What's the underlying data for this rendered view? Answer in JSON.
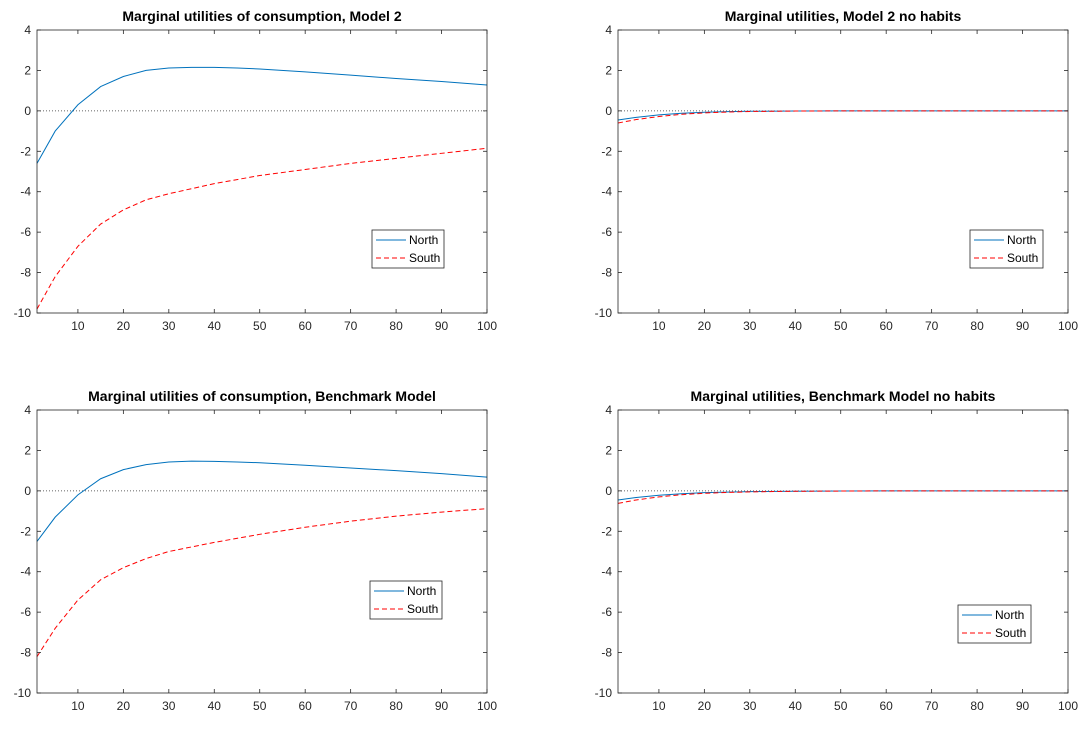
{
  "chart_data": [
    {
      "type": "line",
      "title": "Marginal utilities of consumption, Model 2",
      "xlabel": "",
      "ylabel": "",
      "xlim": [
        1,
        100
      ],
      "ylim": [
        -10,
        4
      ],
      "xticks": [
        10,
        20,
        30,
        40,
        50,
        60,
        70,
        80,
        90,
        100
      ],
      "yticks": [
        -10,
        -8,
        -6,
        -4,
        -2,
        0,
        2,
        4
      ],
      "reference_line": 0,
      "legend_position": "lower-right",
      "series": [
        {
          "name": "North",
          "color": "#0072BD",
          "style": "solid",
          "x": [
            1,
            5,
            10,
            15,
            20,
            25,
            30,
            35,
            40,
            45,
            50,
            60,
            70,
            80,
            90,
            100
          ],
          "y": [
            -2.6,
            -1.0,
            0.3,
            1.2,
            1.7,
            2.0,
            2.12,
            2.15,
            2.15,
            2.12,
            2.07,
            1.93,
            1.77,
            1.6,
            1.45,
            1.28
          ]
        },
        {
          "name": "South",
          "color": "#FF0000",
          "style": "dashed",
          "x": [
            1,
            5,
            10,
            15,
            20,
            25,
            30,
            40,
            50,
            60,
            70,
            80,
            90,
            100
          ],
          "y": [
            -9.8,
            -8.2,
            -6.7,
            -5.6,
            -4.9,
            -4.4,
            -4.1,
            -3.6,
            -3.2,
            -2.9,
            -2.6,
            -2.35,
            -2.1,
            -1.85
          ]
        }
      ]
    },
    {
      "type": "line",
      "title": "Marginal utilities, Model 2 no habits",
      "xlabel": "",
      "ylabel": "",
      "xlim": [
        1,
        100
      ],
      "ylim": [
        -10,
        4
      ],
      "xticks": [
        10,
        20,
        30,
        40,
        50,
        60,
        70,
        80,
        90,
        100
      ],
      "yticks": [
        -10,
        -8,
        -6,
        -4,
        -2,
        0,
        2,
        4
      ],
      "reference_line": 0,
      "legend_position": "lower-right",
      "series": [
        {
          "name": "North",
          "color": "#0072BD",
          "style": "solid",
          "x": [
            1,
            5,
            10,
            15,
            20,
            25,
            30,
            40,
            50,
            60,
            80,
            100
          ],
          "y": [
            -0.45,
            -0.32,
            -0.2,
            -0.12,
            -0.07,
            -0.04,
            -0.02,
            -0.01,
            0,
            0,
            0,
            0
          ]
        },
        {
          "name": "South",
          "color": "#FF0000",
          "style": "dashed",
          "x": [
            1,
            5,
            10,
            15,
            20,
            25,
            30,
            40,
            50,
            60,
            80,
            100
          ],
          "y": [
            -0.6,
            -0.43,
            -0.28,
            -0.17,
            -0.1,
            -0.06,
            -0.03,
            -0.01,
            0,
            0,
            0,
            0
          ]
        }
      ]
    },
    {
      "type": "line",
      "title": "Marginal utilities of consumption, Benchmark Model",
      "xlabel": "",
      "ylabel": "",
      "xlim": [
        1,
        100
      ],
      "ylim": [
        -10,
        4
      ],
      "xticks": [
        10,
        20,
        30,
        40,
        50,
        60,
        70,
        80,
        90,
        100
      ],
      "yticks": [
        -10,
        -8,
        -6,
        -4,
        -2,
        0,
        2,
        4
      ],
      "reference_line": 0,
      "legend_position": "lower-right",
      "series": [
        {
          "name": "North",
          "color": "#0072BD",
          "style": "solid",
          "x": [
            1,
            5,
            10,
            15,
            20,
            25,
            30,
            35,
            40,
            45,
            50,
            60,
            70,
            80,
            90,
            100
          ],
          "y": [
            -2.5,
            -1.3,
            -0.2,
            0.6,
            1.05,
            1.3,
            1.43,
            1.47,
            1.46,
            1.43,
            1.39,
            1.27,
            1.13,
            1.0,
            0.85,
            0.68
          ]
        },
        {
          "name": "South",
          "color": "#FF0000",
          "style": "dashed",
          "x": [
            1,
            5,
            10,
            15,
            20,
            25,
            30,
            40,
            50,
            60,
            70,
            80,
            90,
            100
          ],
          "y": [
            -8.2,
            -6.8,
            -5.4,
            -4.4,
            -3.8,
            -3.35,
            -3.0,
            -2.55,
            -2.15,
            -1.8,
            -1.5,
            -1.25,
            -1.05,
            -0.88
          ]
        }
      ]
    },
    {
      "type": "line",
      "title": "Marginal utilities, Benchmark Model no habits",
      "xlabel": "",
      "ylabel": "",
      "xlim": [
        1,
        100
      ],
      "ylim": [
        -10,
        4
      ],
      "xticks": [
        10,
        20,
        30,
        40,
        50,
        60,
        70,
        80,
        90,
        100
      ],
      "yticks": [
        -10,
        -8,
        -6,
        -4,
        -2,
        0,
        2,
        4
      ],
      "reference_line": 0,
      "legend_position": "lower-right",
      "series": [
        {
          "name": "North",
          "color": "#0072BD",
          "style": "solid",
          "x": [
            1,
            5,
            10,
            15,
            20,
            25,
            30,
            40,
            50,
            60,
            80,
            100
          ],
          "y": [
            -0.45,
            -0.33,
            -0.22,
            -0.14,
            -0.09,
            -0.06,
            -0.04,
            -0.02,
            -0.01,
            0,
            0,
            0
          ]
        },
        {
          "name": "South",
          "color": "#FF0000",
          "style": "dashed",
          "x": [
            1,
            5,
            10,
            15,
            20,
            25,
            30,
            40,
            50,
            60,
            80,
            100
          ],
          "y": [
            -0.62,
            -0.45,
            -0.3,
            -0.19,
            -0.12,
            -0.08,
            -0.05,
            -0.02,
            -0.01,
            0,
            0,
            0
          ]
        }
      ]
    }
  ]
}
